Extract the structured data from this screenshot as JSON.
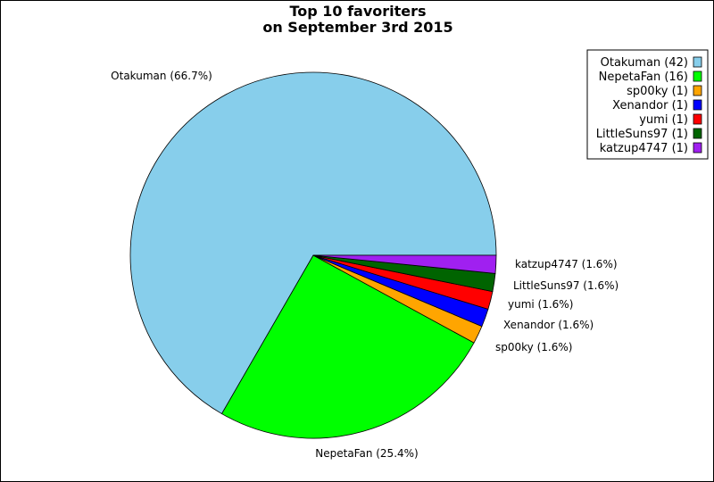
{
  "chart_data": {
    "type": "pie",
    "title_lines": [
      "Top 10 favoriters",
      "on September 3rd 2015"
    ],
    "slices": [
      {
        "label": "Otakuman",
        "value": 42,
        "percent": "66.7%",
        "color": "#87ceeb"
      },
      {
        "label": "NepetaFan",
        "value": 16,
        "percent": "25.4%",
        "color": "#00ff00"
      },
      {
        "label": "sp00ky",
        "value": 1,
        "percent": "1.6%",
        "color": "#ffa500"
      },
      {
        "label": "Xenandor",
        "value": 1,
        "percent": "1.6%",
        "color": "#0000ff"
      },
      {
        "label": "yumi",
        "value": 1,
        "percent": "1.6%",
        "color": "#ff0000"
      },
      {
        "label": "LittleSuns97",
        "value": 1,
        "percent": "1.6%",
        "color": "#006400"
      },
      {
        "label": "katzup4747",
        "value": 1,
        "percent": "1.6%",
        "color": "#a020f0"
      }
    ],
    "legend_placement": "top-right"
  }
}
